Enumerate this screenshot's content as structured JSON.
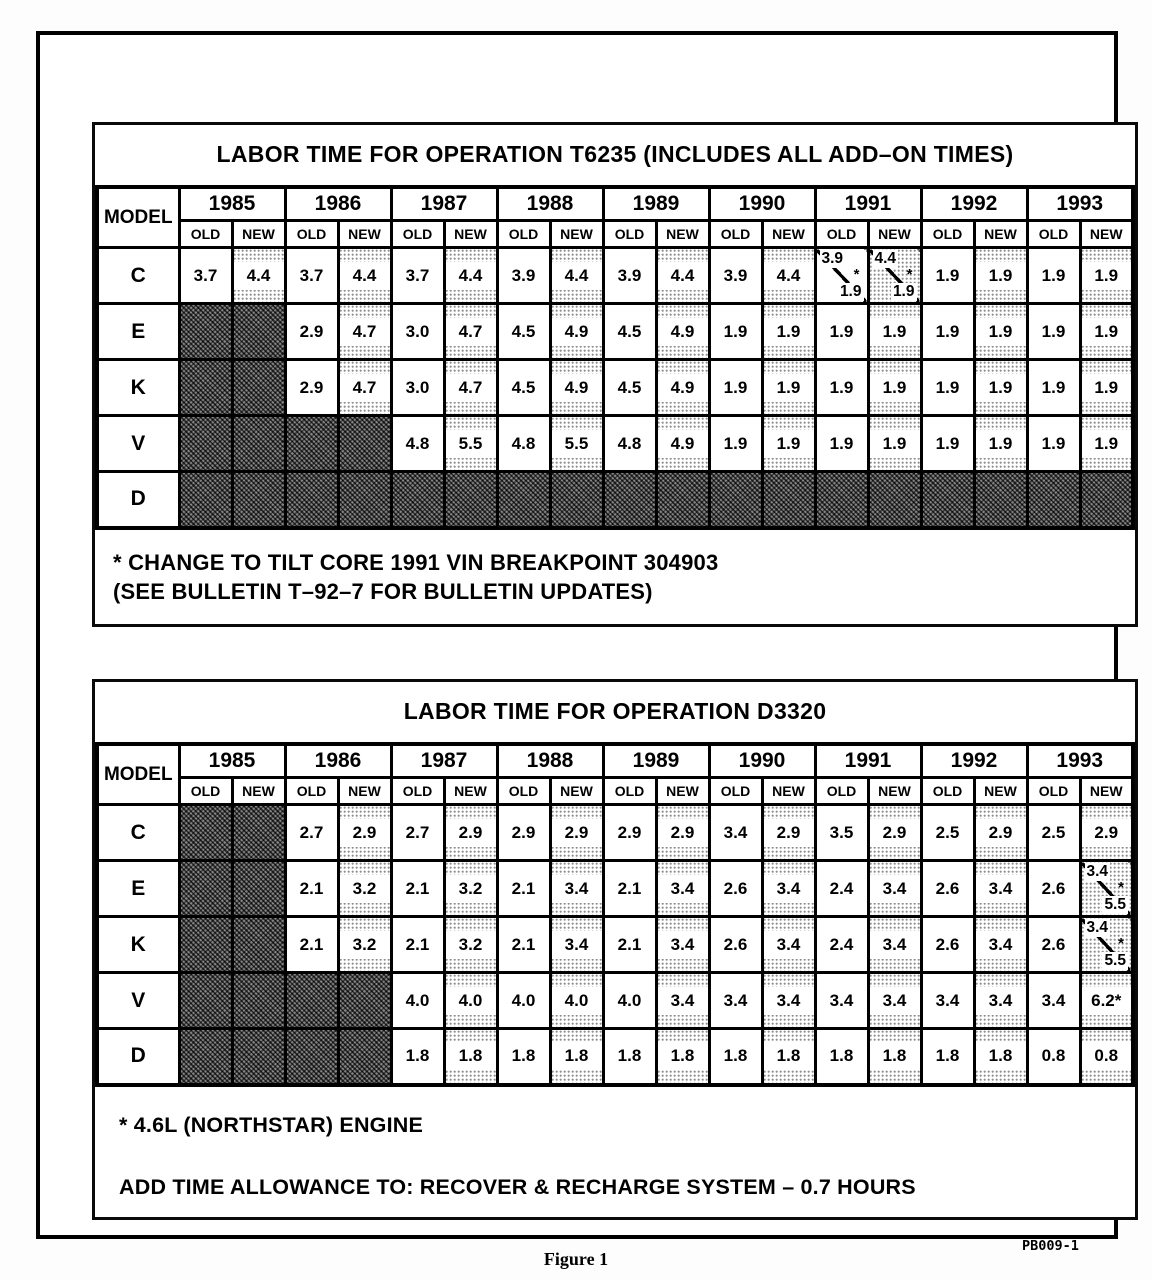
{
  "page": {
    "plate_code": "PB009-1",
    "figure_caption": "Figure 1"
  },
  "tables": [
    {
      "title": "LABOR TIME FOR OPERATION T6235 (INCLUDES ALL ADD–ON TIMES)",
      "model_header": "MODEL",
      "years": [
        "1985",
        "1986",
        "1987",
        "1988",
        "1989",
        "1990",
        "1991",
        "1992",
        "1993"
      ],
      "sub_headers": [
        "OLD",
        "NEW"
      ],
      "rows": [
        {
          "model": "C",
          "cells": [
            "3.7",
            "4.4",
            "3.7",
            "4.4",
            "3.7",
            "4.4",
            "3.9",
            "4.4",
            "3.9",
            "4.4",
            "3.9",
            "4.4",
            {
              "top": "3.9",
              "bottom": "1.9",
              "mark": "*"
            },
            {
              "top": "4.4",
              "bottom": "1.9",
              "mark": "*"
            },
            "1.9",
            "1.9",
            "1.9",
            "1.9"
          ]
        },
        {
          "model": "E",
          "cells": [
            null,
            null,
            "2.9",
            "4.7",
            "3.0",
            "4.7",
            "4.5",
            "4.9",
            "4.5",
            "4.9",
            "1.9",
            "1.9",
            "1.9",
            "1.9",
            "1.9",
            "1.9",
            "1.9",
            "1.9"
          ]
        },
        {
          "model": "K",
          "cells": [
            null,
            null,
            "2.9",
            "4.7",
            "3.0",
            "4.7",
            "4.5",
            "4.9",
            "4.5",
            "4.9",
            "1.9",
            "1.9",
            "1.9",
            "1.9",
            "1.9",
            "1.9",
            "1.9",
            "1.9"
          ]
        },
        {
          "model": "V",
          "cells": [
            null,
            null,
            null,
            null,
            "4.8",
            "5.5",
            "4.8",
            "5.5",
            "4.8",
            "4.9",
            "1.9",
            "1.9",
            "1.9",
            "1.9",
            "1.9",
            "1.9",
            "1.9",
            "1.9"
          ]
        },
        {
          "model": "D",
          "cells": [
            null,
            null,
            null,
            null,
            null,
            null,
            null,
            null,
            null,
            null,
            null,
            null,
            null,
            null,
            null,
            null,
            null,
            null
          ]
        }
      ],
      "footnotes": [
        "* CHANGE TO TILT CORE 1991 VIN BREAKPOINT 304903",
        "(SEE BULLETIN T–92–7 FOR BULLETIN UPDATES)"
      ]
    },
    {
      "title": "LABOR TIME FOR OPERATION D3320",
      "model_header": "MODEL",
      "years": [
        "1985",
        "1986",
        "1987",
        "1988",
        "1989",
        "1990",
        "1991",
        "1992",
        "1993"
      ],
      "sub_headers": [
        "OLD",
        "NEW"
      ],
      "rows": [
        {
          "model": "C",
          "cells": [
            null,
            null,
            "2.7",
            "2.9",
            "2.7",
            "2.9",
            "2.9",
            "2.9",
            "2.9",
            "2.9",
            "3.4",
            "2.9",
            "3.5",
            "2.9",
            "2.5",
            "2.9",
            "2.5",
            "2.9"
          ]
        },
        {
          "model": "E",
          "cells": [
            null,
            null,
            "2.1",
            "3.2",
            "2.1",
            "3.2",
            "2.1",
            "3.4",
            "2.1",
            "3.4",
            "2.6",
            "3.4",
            "2.4",
            "3.4",
            "2.6",
            "3.4",
            "2.6",
            {
              "top": "3.4",
              "bottom": "5.5",
              "mark": "*"
            }
          ]
        },
        {
          "model": "K",
          "cells": [
            null,
            null,
            "2.1",
            "3.2",
            "2.1",
            "3.2",
            "2.1",
            "3.4",
            "2.1",
            "3.4",
            "2.6",
            "3.4",
            "2.4",
            "3.4",
            "2.6",
            "3.4",
            "2.6",
            {
              "top": "3.4",
              "bottom": "5.5",
              "mark": "*"
            }
          ]
        },
        {
          "model": "V",
          "cells": [
            null,
            null,
            null,
            null,
            "4.0",
            "4.0",
            "4.0",
            "4.0",
            "4.0",
            "3.4",
            "3.4",
            "3.4",
            "3.4",
            "3.4",
            "3.4",
            "3.4",
            "3.4",
            "6.2*"
          ]
        },
        {
          "model": "D",
          "cells": [
            null,
            null,
            null,
            null,
            "1.8",
            "1.8",
            "1.8",
            "1.8",
            "1.8",
            "1.8",
            "1.8",
            "1.8",
            "1.8",
            "1.8",
            "1.8",
            "1.8",
            "0.8",
            "0.8"
          ]
        }
      ],
      "footnotes": [
        "* 4.6L (NORTHSTAR) ENGINE",
        "ADD TIME ALLOWANCE TO:  RECOVER & RECHARGE SYSTEM – 0.7 HOURS"
      ]
    }
  ]
}
